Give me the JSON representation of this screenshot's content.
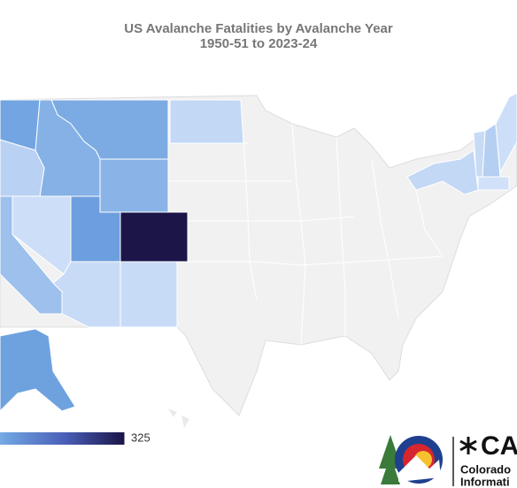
{
  "chart_data": {
    "type": "choropleth",
    "title": "US Avalanche Fatalities by Avalanche Year",
    "subtitle": "1950-51 to 2023-24",
    "values": [
      325,
      115,
      105,
      95,
      85,
      80,
      30,
      60,
      10,
      15,
      15,
      20,
      110,
      20,
      15,
      35,
      10,
      5
    ],
    "clim": [
      0,
      325
    ],
    "cticks": [
      325
    ],
    "colors": [
      "#d6e4fa",
      "#6fa3e0",
      "#4a5fb8",
      "#1b1548"
    ],
    "empty_color": "#f1f1f1"
  },
  "logo": {
    "wordmark": "CA",
    "line1": "Colorado",
    "line2": "Informati"
  }
}
